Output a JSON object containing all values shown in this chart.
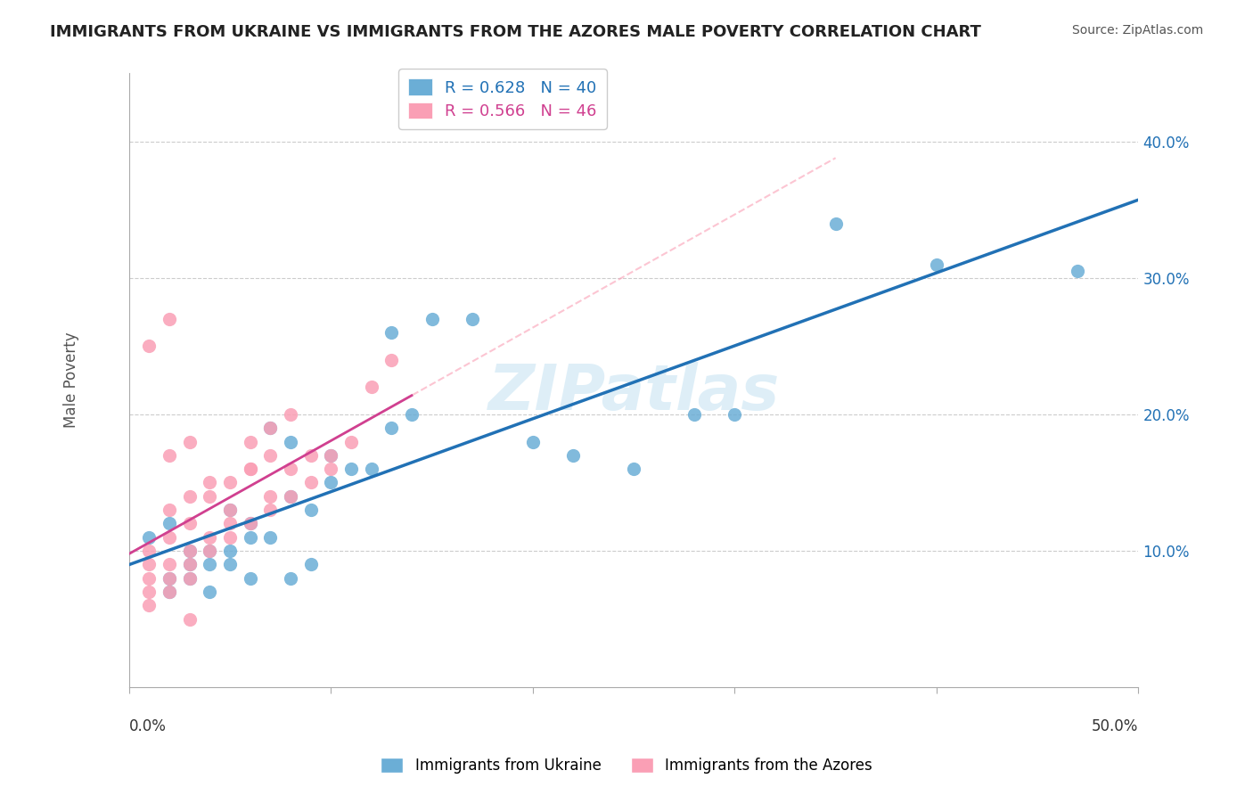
{
  "title": "IMMIGRANTS FROM UKRAINE VS IMMIGRANTS FROM THE AZORES MALE POVERTY CORRELATION CHART",
  "source": "Source: ZipAtlas.com",
  "ylabel": "Male Poverty",
  "ytick_labels": [
    "10.0%",
    "20.0%",
    "30.0%",
    "40.0%"
  ],
  "ytick_values": [
    0.1,
    0.2,
    0.3,
    0.4
  ],
  "xlim": [
    0.0,
    0.5
  ],
  "ylim": [
    0.0,
    0.45
  ],
  "ukraine_R": 0.628,
  "ukraine_N": 40,
  "azores_R": 0.566,
  "azores_N": 46,
  "ukraine_color": "#6baed6",
  "azores_color": "#fa9fb5",
  "ukraine_line_color": "#2171b5",
  "azores_line_color": "#d04090",
  "ukraine_scatter_x": [
    0.02,
    0.04,
    0.03,
    0.01,
    0.05,
    0.06,
    0.07,
    0.08,
    0.09,
    0.1,
    0.02,
    0.03,
    0.04,
    0.05,
    0.06,
    0.07,
    0.08,
    0.1,
    0.12,
    0.13,
    0.14,
    0.15,
    0.17,
    0.2,
    0.22,
    0.25,
    0.28,
    0.3,
    0.35,
    0.4,
    0.02,
    0.03,
    0.04,
    0.05,
    0.06,
    0.08,
    0.09,
    0.11,
    0.13,
    0.47
  ],
  "ukraine_scatter_y": [
    0.12,
    0.09,
    0.1,
    0.11,
    0.13,
    0.12,
    0.11,
    0.14,
    0.13,
    0.15,
    0.08,
    0.09,
    0.1,
    0.1,
    0.11,
    0.19,
    0.18,
    0.17,
    0.16,
    0.19,
    0.2,
    0.27,
    0.27,
    0.18,
    0.17,
    0.16,
    0.2,
    0.2,
    0.34,
    0.31,
    0.07,
    0.08,
    0.07,
    0.09,
    0.08,
    0.08,
    0.09,
    0.16,
    0.26,
    0.305
  ],
  "azores_scatter_x": [
    0.01,
    0.02,
    0.03,
    0.01,
    0.02,
    0.03,
    0.04,
    0.05,
    0.06,
    0.07,
    0.01,
    0.02,
    0.03,
    0.04,
    0.05,
    0.06,
    0.07,
    0.08,
    0.09,
    0.1,
    0.01,
    0.02,
    0.03,
    0.04,
    0.05,
    0.06,
    0.07,
    0.08,
    0.02,
    0.03,
    0.04,
    0.05,
    0.06,
    0.07,
    0.08,
    0.09,
    0.1,
    0.11,
    0.12,
    0.13,
    0.01,
    0.02,
    0.03,
    0.01,
    0.02,
    0.03
  ],
  "azores_scatter_y": [
    0.09,
    0.11,
    0.12,
    0.1,
    0.13,
    0.14,
    0.15,
    0.13,
    0.16,
    0.14,
    0.08,
    0.09,
    0.1,
    0.11,
    0.12,
    0.12,
    0.13,
    0.14,
    0.15,
    0.16,
    0.07,
    0.08,
    0.09,
    0.1,
    0.11,
    0.18,
    0.19,
    0.2,
    0.17,
    0.18,
    0.14,
    0.15,
    0.16,
    0.17,
    0.16,
    0.17,
    0.17,
    0.18,
    0.22,
    0.24,
    0.25,
    0.27,
    0.08,
    0.06,
    0.07,
    0.05
  ],
  "watermark": "ZIPatlas",
  "legend_ukraine_text": "R = 0.628   N = 40",
  "legend_azores_text": "R = 0.566   N = 46",
  "background_color": "#ffffff",
  "grid_color": "#cccccc"
}
